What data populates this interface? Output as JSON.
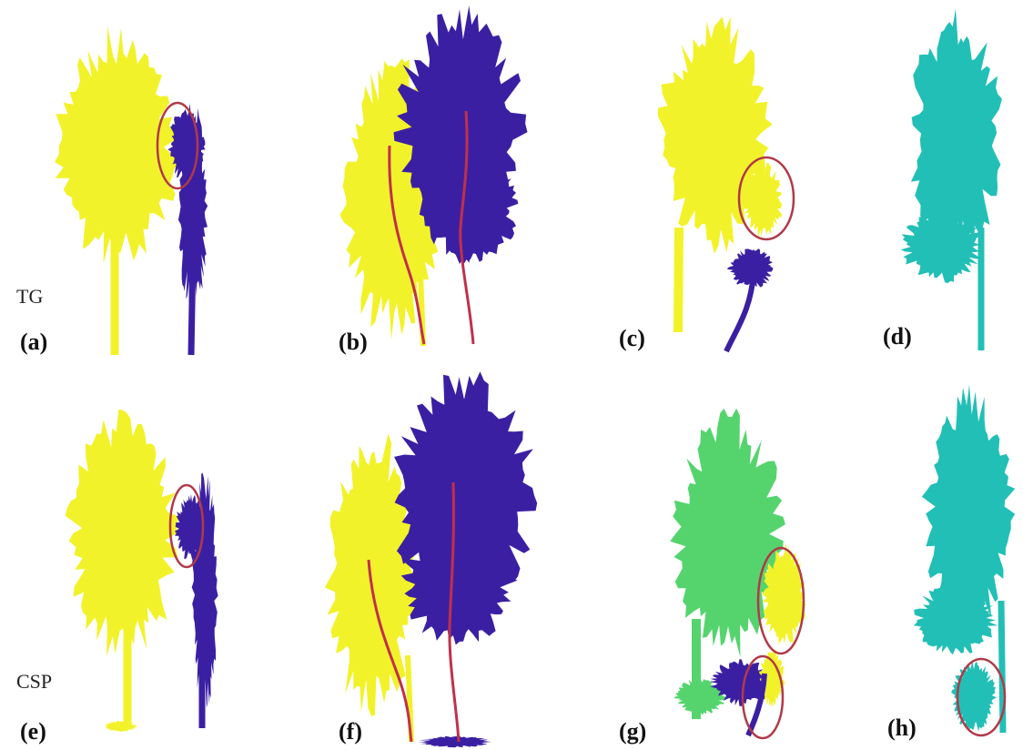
{
  "row_labels": [
    "TG",
    "CSP"
  ],
  "panel_labels": [
    "(a)",
    "(b)",
    "(c)",
    "(d)",
    "(e)",
    "(f)",
    "(g)",
    "(h)"
  ]
}
